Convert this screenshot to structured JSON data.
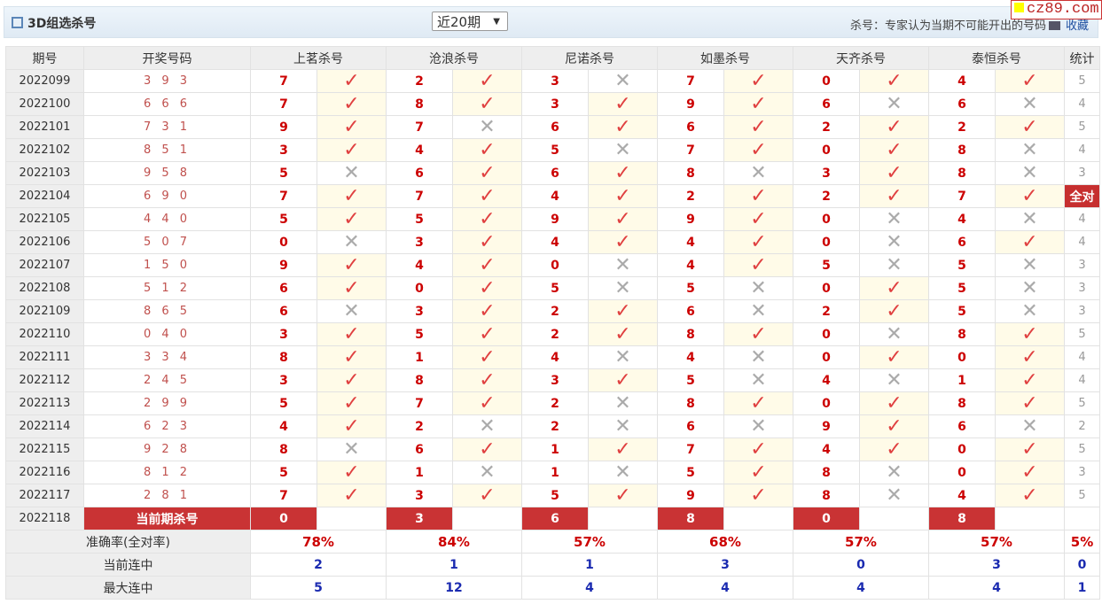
{
  "header": {
    "title": "3D组选杀号",
    "period_select": "近20期",
    "note": "杀号：专家认为当期不可能开出的号码",
    "favorite": "收藏",
    "logo": "cz89.com"
  },
  "columns": {
    "period": "期号",
    "draw": "开奖号码",
    "experts": [
      "上茗杀号",
      "沧浪杀号",
      "尼诺杀号",
      "如墨杀号",
      "天齐杀号",
      "泰恒杀号"
    ],
    "stat": "统计"
  },
  "rows": [
    {
      "period": "2022099",
      "draw": "3 9 3",
      "kills": [
        [
          7,
          1
        ],
        [
          2,
          1
        ],
        [
          3,
          0
        ],
        [
          7,
          1
        ],
        [
          0,
          1
        ],
        [
          4,
          1
        ]
      ],
      "stat": "5"
    },
    {
      "period": "2022100",
      "draw": "6 6 6",
      "kills": [
        [
          7,
          1
        ],
        [
          8,
          1
        ],
        [
          3,
          1
        ],
        [
          9,
          1
        ],
        [
          6,
          0
        ],
        [
          6,
          0
        ]
      ],
      "stat": "4"
    },
    {
      "period": "2022101",
      "draw": "7 3 1",
      "kills": [
        [
          9,
          1
        ],
        [
          7,
          0
        ],
        [
          6,
          1
        ],
        [
          6,
          1
        ],
        [
          2,
          1
        ],
        [
          2,
          1
        ]
      ],
      "stat": "5"
    },
    {
      "period": "2022102",
      "draw": "8 5 1",
      "kills": [
        [
          3,
          1
        ],
        [
          4,
          1
        ],
        [
          5,
          0
        ],
        [
          7,
          1
        ],
        [
          0,
          1
        ],
        [
          8,
          0
        ]
      ],
      "stat": "4"
    },
    {
      "period": "2022103",
      "draw": "9 5 8",
      "kills": [
        [
          5,
          0
        ],
        [
          6,
          1
        ],
        [
          6,
          1
        ],
        [
          8,
          0
        ],
        [
          3,
          1
        ],
        [
          8,
          0
        ]
      ],
      "stat": "3"
    },
    {
      "period": "2022104",
      "draw": "6 9 0",
      "kills": [
        [
          7,
          1
        ],
        [
          7,
          1
        ],
        [
          4,
          1
        ],
        [
          2,
          1
        ],
        [
          2,
          1
        ],
        [
          7,
          1
        ]
      ],
      "stat": "全对"
    },
    {
      "period": "2022105",
      "draw": "4 4 0",
      "kills": [
        [
          5,
          1
        ],
        [
          5,
          1
        ],
        [
          9,
          1
        ],
        [
          9,
          1
        ],
        [
          0,
          0
        ],
        [
          4,
          0
        ]
      ],
      "stat": "4"
    },
    {
      "period": "2022106",
      "draw": "5 0 7",
      "kills": [
        [
          0,
          0
        ],
        [
          3,
          1
        ],
        [
          4,
          1
        ],
        [
          4,
          1
        ],
        [
          0,
          0
        ],
        [
          6,
          1
        ]
      ],
      "stat": "4"
    },
    {
      "period": "2022107",
      "draw": "1 5 0",
      "kills": [
        [
          9,
          1
        ],
        [
          4,
          1
        ],
        [
          0,
          0
        ],
        [
          4,
          1
        ],
        [
          5,
          0
        ],
        [
          5,
          0
        ]
      ],
      "stat": "3"
    },
    {
      "period": "2022108",
      "draw": "5 1 2",
      "kills": [
        [
          6,
          1
        ],
        [
          0,
          1
        ],
        [
          5,
          0
        ],
        [
          5,
          0
        ],
        [
          0,
          1
        ],
        [
          5,
          0
        ]
      ],
      "stat": "3"
    },
    {
      "period": "2022109",
      "draw": "8 6 5",
      "kills": [
        [
          6,
          0
        ],
        [
          3,
          1
        ],
        [
          2,
          1
        ],
        [
          6,
          0
        ],
        [
          2,
          1
        ],
        [
          5,
          0
        ]
      ],
      "stat": "3"
    },
    {
      "period": "2022110",
      "draw": "0 4 0",
      "kills": [
        [
          3,
          1
        ],
        [
          5,
          1
        ],
        [
          2,
          1
        ],
        [
          8,
          1
        ],
        [
          0,
          0
        ],
        [
          8,
          1
        ]
      ],
      "stat": "5"
    },
    {
      "period": "2022111",
      "draw": "3 3 4",
      "kills": [
        [
          8,
          1
        ],
        [
          1,
          1
        ],
        [
          4,
          0
        ],
        [
          4,
          0
        ],
        [
          0,
          1
        ],
        [
          0,
          1
        ]
      ],
      "stat": "4"
    },
    {
      "period": "2022112",
      "draw": "2 4 5",
      "kills": [
        [
          3,
          1
        ],
        [
          8,
          1
        ],
        [
          3,
          1
        ],
        [
          5,
          0
        ],
        [
          4,
          0
        ],
        [
          1,
          1
        ]
      ],
      "stat": "4"
    },
    {
      "period": "2022113",
      "draw": "2 9 9",
      "kills": [
        [
          5,
          1
        ],
        [
          7,
          1
        ],
        [
          2,
          0
        ],
        [
          8,
          1
        ],
        [
          0,
          1
        ],
        [
          8,
          1
        ]
      ],
      "stat": "5"
    },
    {
      "period": "2022114",
      "draw": "6 2 3",
      "kills": [
        [
          4,
          1
        ],
        [
          2,
          0
        ],
        [
          2,
          0
        ],
        [
          6,
          0
        ],
        [
          9,
          1
        ],
        [
          6,
          0
        ]
      ],
      "stat": "2"
    },
    {
      "period": "2022115",
      "draw": "9 2 8",
      "kills": [
        [
          8,
          0
        ],
        [
          6,
          1
        ],
        [
          1,
          1
        ],
        [
          7,
          1
        ],
        [
          4,
          1
        ],
        [
          0,
          1
        ]
      ],
      "stat": "5"
    },
    {
      "period": "2022116",
      "draw": "8 1 2",
      "kills": [
        [
          5,
          1
        ],
        [
          1,
          0
        ],
        [
          1,
          0
        ],
        [
          5,
          1
        ],
        [
          8,
          0
        ],
        [
          0,
          1
        ]
      ],
      "stat": "3"
    },
    {
      "period": "2022117",
      "draw": "2 8 1",
      "kills": [
        [
          7,
          1
        ],
        [
          3,
          1
        ],
        [
          5,
          1
        ],
        [
          9,
          1
        ],
        [
          8,
          0
        ],
        [
          4,
          1
        ]
      ],
      "stat": "5"
    }
  ],
  "current": {
    "period": "2022118",
    "label": "当前期杀号",
    "kills": [
      "0",
      "3",
      "6",
      "8",
      "0",
      "8"
    ]
  },
  "summary": [
    {
      "label": "准确率(全对率)",
      "values": [
        "78%",
        "84%",
        "57%",
        "68%",
        "57%",
        "57%"
      ],
      "stat": "5%"
    },
    {
      "label": "当前连中",
      "values": [
        "2",
        "1",
        "1",
        "3",
        "0",
        "3"
      ],
      "stat": "0"
    },
    {
      "label": "最大连中",
      "values": [
        "5",
        "12",
        "4",
        "4",
        "4",
        "4"
      ],
      "stat": "1"
    }
  ],
  "icons": {
    "hit": "check-icon",
    "miss": "cross-icon"
  },
  "colors": {
    "hit": "#e04040",
    "miss": "#aaaaaa",
    "current_bg": "#c93334",
    "hit_bg": "#fffbe8"
  }
}
